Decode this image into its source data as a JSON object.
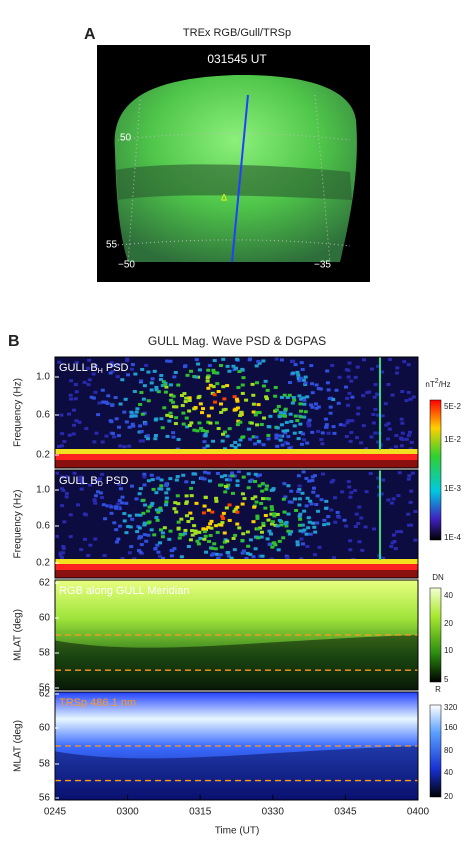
{
  "panel_a": {
    "label": "A",
    "title": "TREx RGB/Gull/TRSp",
    "timestamp": "031545 UT",
    "lat_labels": [
      "50",
      "55"
    ],
    "lon_labels": [
      "−50",
      "−35"
    ],
    "marker": "Δ"
  },
  "panel_b": {
    "label": "B",
    "title": "GULL Mag. Wave PSD & DGPAS",
    "plots": [
      {
        "name": {
          "prefix": "GULL B",
          "sub": "H",
          "suffix": " PSD"
        },
        "y_label": "Frequency (Hz)",
        "yticks": [
          "1.0",
          "0.6",
          "0.2"
        ]
      },
      {
        "name": {
          "prefix": "GULL B",
          "sub": "D",
          "suffix": " PSD"
        },
        "y_label": "Frequency (Hz)",
        "yticks": [
          "1.0",
          "0.6",
          "0.2"
        ]
      },
      {
        "name": "RGB along GULL Meridian",
        "y_label": "MLAT (deg)",
        "yticks": [
          "62",
          "60",
          "58",
          "56"
        ]
      },
      {
        "name": "TRSp 486.1 nm",
        "y_label": "MLAT (deg)",
        "yticks": [
          "62",
          "60",
          "58",
          "56"
        ]
      }
    ],
    "colorbars": [
      {
        "unit": {
          "prefix": "nT",
          "sup": "2",
          "suffix": "/Hz"
        },
        "ticks": [
          "5E-2",
          "1E-2",
          "1E-3",
          "1E-4"
        ]
      },
      {
        "unit": "DN",
        "ticks": [
          "40",
          "20",
          "10",
          "5"
        ]
      },
      {
        "unit": "R",
        "ticks": [
          "320",
          "160",
          "80",
          "40",
          "20"
        ]
      }
    ],
    "time_ticks": [
      "0245",
      "0300",
      "0315",
      "0330",
      "0345",
      "0400"
    ],
    "x_label": "Time (UT)"
  }
}
